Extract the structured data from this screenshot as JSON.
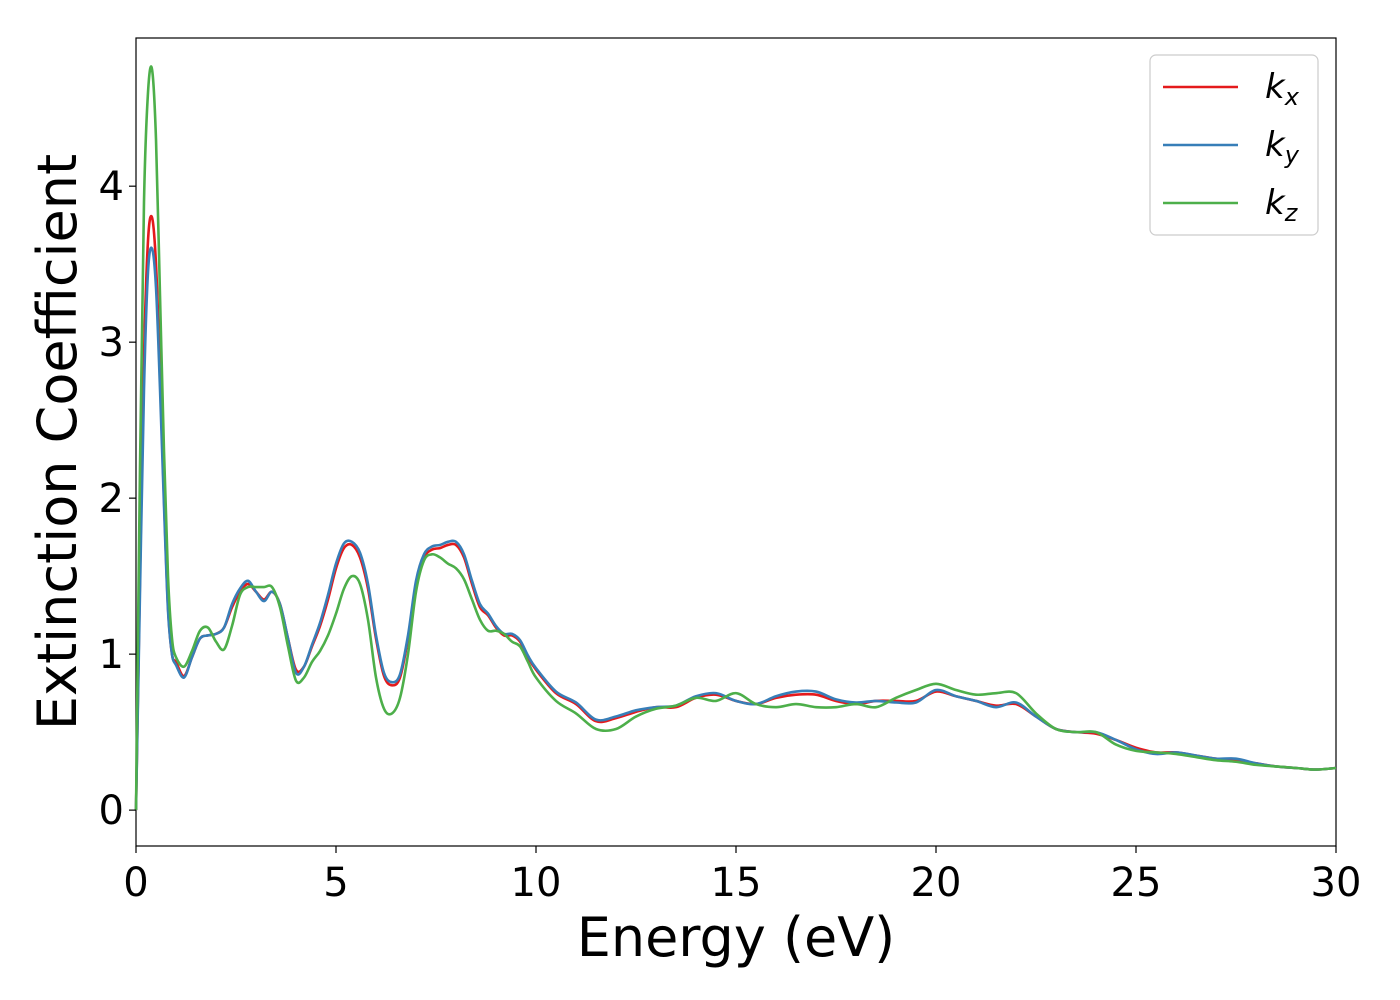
{
  "chart_data": {
    "type": "line",
    "title": "",
    "xlabel": "Energy (eV)",
    "ylabel": "Extinction Coefficient",
    "xlim": [
      0,
      30
    ],
    "ylim": [
      -0.23,
      4.95
    ],
    "xticks": [
      0,
      5,
      10,
      15,
      20,
      25,
      30
    ],
    "yticks": [
      0,
      1,
      2,
      3,
      4
    ],
    "grid": false,
    "legend_position": "top-right",
    "series": [
      {
        "name": "k_x",
        "label_base": "k",
        "label_sub": "x",
        "color": "#e41a1c",
        "x": [
          0,
          0.1,
          0.2,
          0.3,
          0.4,
          0.5,
          0.6,
          0.7,
          0.8,
          0.9,
          1.0,
          1.2,
          1.4,
          1.6,
          1.8,
          2.0,
          2.2,
          2.4,
          2.6,
          2.8,
          3.0,
          3.2,
          3.4,
          3.6,
          3.8,
          4.0,
          4.2,
          4.4,
          4.6,
          4.8,
          5.0,
          5.2,
          5.4,
          5.6,
          5.8,
          6.0,
          6.2,
          6.4,
          6.6,
          6.8,
          7.0,
          7.2,
          7.4,
          7.6,
          7.8,
          8.0,
          8.2,
          8.4,
          8.6,
          8.8,
          9.0,
          9.2,
          9.4,
          9.6,
          9.8,
          10.0,
          10.5,
          11.0,
          11.5,
          12.0,
          12.5,
          13.0,
          13.5,
          14.0,
          14.5,
          15.0,
          15.5,
          16.0,
          16.5,
          17.0,
          17.5,
          18.0,
          18.5,
          19.0,
          19.5,
          20.0,
          20.5,
          21.0,
          21.5,
          22.0,
          22.5,
          23.0,
          23.5,
          24.0,
          24.5,
          25.0,
          25.5,
          26.0,
          26.5,
          27.0,
          27.5,
          28.0,
          28.5,
          29.0,
          29.5,
          30.0
        ],
        "y": [
          0.0,
          1.5,
          2.9,
          3.65,
          3.8,
          3.5,
          2.8,
          2.0,
          1.3,
          1.0,
          0.95,
          0.86,
          0.98,
          1.1,
          1.12,
          1.13,
          1.17,
          1.3,
          1.4,
          1.45,
          1.4,
          1.35,
          1.4,
          1.32,
          1.1,
          0.9,
          0.92,
          1.05,
          1.18,
          1.35,
          1.55,
          1.68,
          1.7,
          1.62,
          1.42,
          1.1,
          0.86,
          0.8,
          0.85,
          1.1,
          1.45,
          1.62,
          1.67,
          1.68,
          1.7,
          1.7,
          1.62,
          1.45,
          1.3,
          1.25,
          1.17,
          1.12,
          1.12,
          1.08,
          0.98,
          0.9,
          0.75,
          0.68,
          0.57,
          0.59,
          0.63,
          0.66,
          0.66,
          0.72,
          0.74,
          0.7,
          0.68,
          0.72,
          0.74,
          0.74,
          0.7,
          0.68,
          0.7,
          0.7,
          0.7,
          0.76,
          0.73,
          0.7,
          0.67,
          0.68,
          0.6,
          0.52,
          0.5,
          0.49,
          0.45,
          0.4,
          0.37,
          0.37,
          0.35,
          0.33,
          0.32,
          0.3,
          0.28,
          0.27,
          0.26,
          0.27
        ]
      },
      {
        "name": "k_y",
        "label_base": "k",
        "label_sub": "y",
        "color": "#377eb8",
        "x": [
          0,
          0.1,
          0.2,
          0.3,
          0.4,
          0.5,
          0.6,
          0.7,
          0.8,
          0.9,
          1.0,
          1.2,
          1.4,
          1.6,
          1.8,
          2.0,
          2.2,
          2.4,
          2.6,
          2.8,
          3.0,
          3.2,
          3.4,
          3.6,
          3.8,
          4.0,
          4.2,
          4.4,
          4.6,
          4.8,
          5.0,
          5.2,
          5.4,
          5.6,
          5.8,
          6.0,
          6.2,
          6.4,
          6.6,
          6.8,
          7.0,
          7.2,
          7.4,
          7.6,
          7.8,
          8.0,
          8.2,
          8.4,
          8.6,
          8.8,
          9.0,
          9.2,
          9.4,
          9.6,
          9.8,
          10.0,
          10.5,
          11.0,
          11.5,
          12.0,
          12.5,
          13.0,
          13.5,
          14.0,
          14.5,
          15.0,
          15.5,
          16.0,
          16.5,
          17.0,
          17.5,
          18.0,
          18.5,
          19.0,
          19.5,
          20.0,
          20.5,
          21.0,
          21.5,
          22.0,
          22.5,
          23.0,
          23.5,
          24.0,
          24.5,
          25.0,
          25.5,
          26.0,
          26.5,
          27.0,
          27.5,
          28.0,
          28.5,
          29.0,
          29.5,
          30.0
        ],
        "y": [
          0.0,
          1.4,
          2.7,
          3.45,
          3.6,
          3.35,
          2.7,
          1.95,
          1.28,
          1.0,
          0.93,
          0.85,
          0.98,
          1.1,
          1.12,
          1.13,
          1.17,
          1.32,
          1.42,
          1.47,
          1.4,
          1.34,
          1.4,
          1.32,
          1.1,
          0.88,
          0.92,
          1.06,
          1.2,
          1.38,
          1.58,
          1.71,
          1.72,
          1.65,
          1.45,
          1.12,
          0.88,
          0.82,
          0.87,
          1.12,
          1.47,
          1.64,
          1.69,
          1.7,
          1.72,
          1.72,
          1.64,
          1.47,
          1.32,
          1.26,
          1.18,
          1.13,
          1.13,
          1.09,
          0.99,
          0.91,
          0.76,
          0.69,
          0.58,
          0.6,
          0.64,
          0.66,
          0.67,
          0.73,
          0.75,
          0.7,
          0.68,
          0.73,
          0.76,
          0.76,
          0.71,
          0.69,
          0.7,
          0.69,
          0.69,
          0.77,
          0.73,
          0.7,
          0.66,
          0.69,
          0.6,
          0.52,
          0.5,
          0.5,
          0.45,
          0.39,
          0.36,
          0.37,
          0.35,
          0.33,
          0.33,
          0.3,
          0.28,
          0.27,
          0.26,
          0.27
        ]
      },
      {
        "name": "k_z",
        "label_base": "k",
        "label_sub": "z",
        "color": "#4daf4a",
        "x": [
          0,
          0.1,
          0.2,
          0.3,
          0.4,
          0.5,
          0.6,
          0.7,
          0.8,
          0.9,
          1.0,
          1.2,
          1.4,
          1.6,
          1.8,
          2.0,
          2.2,
          2.4,
          2.6,
          2.8,
          3.0,
          3.2,
          3.4,
          3.6,
          3.8,
          4.0,
          4.2,
          4.4,
          4.6,
          4.8,
          5.0,
          5.2,
          5.4,
          5.6,
          5.8,
          6.0,
          6.2,
          6.4,
          6.6,
          6.8,
          7.0,
          7.2,
          7.4,
          7.6,
          7.8,
          8.0,
          8.2,
          8.4,
          8.6,
          8.8,
          9.0,
          9.2,
          9.4,
          9.6,
          9.8,
          10.0,
          10.5,
          11.0,
          11.5,
          12.0,
          12.5,
          13.0,
          13.5,
          14.0,
          14.5,
          15.0,
          15.5,
          16.0,
          16.5,
          17.0,
          17.5,
          18.0,
          18.5,
          19.0,
          19.5,
          20.0,
          20.5,
          21.0,
          21.5,
          22.0,
          22.5,
          23.0,
          23.5,
          24.0,
          24.5,
          25.0,
          25.5,
          26.0,
          26.5,
          27.0,
          27.5,
          28.0,
          28.5,
          29.0,
          29.5,
          30.0
        ],
        "y": [
          0.0,
          2.2,
          3.9,
          4.6,
          4.75,
          4.3,
          3.3,
          2.3,
          1.5,
          1.1,
          0.98,
          0.92,
          1.02,
          1.15,
          1.17,
          1.08,
          1.03,
          1.18,
          1.38,
          1.43,
          1.43,
          1.43,
          1.43,
          1.3,
          1.05,
          0.83,
          0.85,
          0.95,
          1.02,
          1.12,
          1.26,
          1.42,
          1.5,
          1.45,
          1.22,
          0.85,
          0.65,
          0.62,
          0.72,
          1.0,
          1.4,
          1.6,
          1.64,
          1.62,
          1.58,
          1.55,
          1.48,
          1.35,
          1.22,
          1.15,
          1.15,
          1.13,
          1.08,
          1.05,
          0.95,
          0.85,
          0.7,
          0.62,
          0.52,
          0.52,
          0.6,
          0.65,
          0.67,
          0.72,
          0.7,
          0.75,
          0.68,
          0.66,
          0.68,
          0.66,
          0.66,
          0.68,
          0.66,
          0.72,
          0.77,
          0.81,
          0.77,
          0.74,
          0.75,
          0.75,
          0.62,
          0.52,
          0.5,
          0.5,
          0.42,
          0.38,
          0.37,
          0.36,
          0.34,
          0.32,
          0.31,
          0.29,
          0.28,
          0.27,
          0.26,
          0.27
        ]
      }
    ]
  }
}
